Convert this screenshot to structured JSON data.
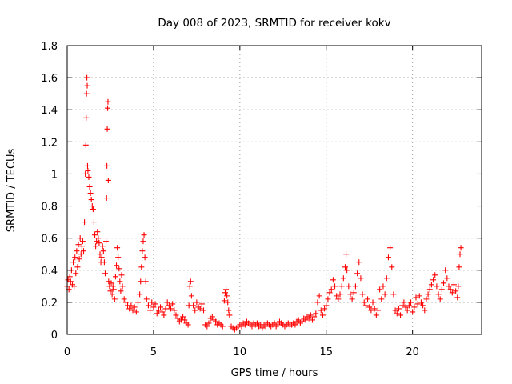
{
  "chart_data": {
    "type": "scatter",
    "title": "Day 008 of 2023, SRMTID for receiver kokv",
    "xlabel": "GPS time / hours",
    "ylabel": "SRMTID / TECUs",
    "xlim": [
      0,
      24
    ],
    "ylim": [
      0,
      1.8
    ],
    "xticks": [
      0,
      5,
      10,
      15,
      20
    ],
    "xtick_labels": [
      "0",
      "5",
      "10",
      "15",
      "20"
    ],
    "yticks": [
      0,
      0.2,
      0.4,
      0.6,
      0.8,
      1.0,
      1.2,
      1.4,
      1.6,
      1.8
    ],
    "ytick_labels": [
      "0",
      "0.2",
      "0.4",
      "0.6",
      "0.8",
      "1",
      "1.2",
      "1.4",
      "1.6",
      "1.8"
    ],
    "grid": true,
    "marker": "plus",
    "series": [
      {
        "name": "SRMTID",
        "color": "#ff0000",
        "points": [
          [
            0.0,
            0.3
          ],
          [
            0.05,
            0.34
          ],
          [
            0.1,
            0.28
          ],
          [
            0.15,
            0.36
          ],
          [
            0.2,
            0.33
          ],
          [
            0.25,
            0.4
          ],
          [
            0.3,
            0.31
          ],
          [
            0.35,
            0.45
          ],
          [
            0.4,
            0.3
          ],
          [
            0.45,
            0.48
          ],
          [
            0.5,
            0.38
          ],
          [
            0.55,
            0.52
          ],
          [
            0.6,
            0.42
          ],
          [
            0.65,
            0.56
          ],
          [
            0.7,
            0.47
          ],
          [
            0.75,
            0.6
          ],
          [
            0.8,
            0.5
          ],
          [
            0.85,
            0.55
          ],
          [
            0.9,
            0.58
          ],
          [
            0.95,
            0.52
          ],
          [
            1.0,
            0.7
          ],
          [
            1.05,
            1.0
          ],
          [
            1.08,
            1.18
          ],
          [
            1.1,
            1.35
          ],
          [
            1.12,
            1.5
          ],
          [
            1.14,
            1.6
          ],
          [
            1.16,
            1.55
          ],
          [
            1.18,
            1.05
          ],
          [
            1.2,
            1.02
          ],
          [
            1.25,
            0.98
          ],
          [
            1.3,
            0.92
          ],
          [
            1.35,
            0.88
          ],
          [
            1.4,
            0.84
          ],
          [
            1.45,
            0.8
          ],
          [
            1.5,
            0.78
          ],
          [
            1.55,
            0.7
          ],
          [
            1.6,
            0.62
          ],
          [
            1.65,
            0.55
          ],
          [
            1.7,
            0.58
          ],
          [
            1.75,
            0.64
          ],
          [
            1.8,
            0.6
          ],
          [
            1.85,
            0.57
          ],
          [
            1.9,
            0.5
          ],
          [
            1.95,
            0.45
          ],
          [
            2.0,
            0.48
          ],
          [
            2.05,
            0.55
          ],
          [
            2.1,
            0.52
          ],
          [
            2.15,
            0.45
          ],
          [
            2.2,
            0.38
          ],
          [
            2.25,
            0.58
          ],
          [
            2.28,
            0.85
          ],
          [
            2.3,
            1.05
          ],
          [
            2.32,
            1.28
          ],
          [
            2.34,
            1.41
          ],
          [
            2.36,
            1.45
          ],
          [
            2.38,
            0.96
          ],
          [
            2.4,
            0.33
          ],
          [
            2.45,
            0.3
          ],
          [
            2.5,
            0.27
          ],
          [
            2.55,
            0.32
          ],
          [
            2.6,
            0.25
          ],
          [
            2.65,
            0.3
          ],
          [
            2.7,
            0.28
          ],
          [
            2.75,
            0.22
          ],
          [
            2.8,
            0.36
          ],
          [
            2.85,
            0.43
          ],
          [
            2.9,
            0.54
          ],
          [
            2.95,
            0.48
          ],
          [
            3.0,
            0.41
          ],
          [
            3.05,
            0.33
          ],
          [
            3.1,
            0.27
          ],
          [
            3.15,
            0.37
          ],
          [
            3.2,
            0.3
          ],
          [
            3.3,
            0.22
          ],
          [
            3.4,
            0.2
          ],
          [
            3.5,
            0.18
          ],
          [
            3.6,
            0.16
          ],
          [
            3.7,
            0.18
          ],
          [
            3.8,
            0.15
          ],
          [
            3.9,
            0.17
          ],
          [
            4.0,
            0.14
          ],
          [
            4.1,
            0.2
          ],
          [
            4.2,
            0.25
          ],
          [
            4.25,
            0.33
          ],
          [
            4.3,
            0.42
          ],
          [
            4.35,
            0.52
          ],
          [
            4.4,
            0.58
          ],
          [
            4.45,
            0.62
          ],
          [
            4.5,
            0.48
          ],
          [
            4.55,
            0.33
          ],
          [
            4.6,
            0.22
          ],
          [
            4.7,
            0.18
          ],
          [
            4.8,
            0.15
          ],
          [
            4.9,
            0.2
          ],
          [
            5.0,
            0.17
          ],
          [
            5.1,
            0.19
          ],
          [
            5.2,
            0.13
          ],
          [
            5.3,
            0.15
          ],
          [
            5.4,
            0.17
          ],
          [
            5.5,
            0.14
          ],
          [
            5.6,
            0.12
          ],
          [
            5.7,
            0.16
          ],
          [
            5.8,
            0.2
          ],
          [
            5.9,
            0.18
          ],
          [
            6.0,
            0.16
          ],
          [
            6.1,
            0.19
          ],
          [
            6.2,
            0.15
          ],
          [
            6.3,
            0.12
          ],
          [
            6.4,
            0.1
          ],
          [
            6.5,
            0.08
          ],
          [
            6.6,
            0.09
          ],
          [
            6.7,
            0.11
          ],
          [
            6.8,
            0.09
          ],
          [
            6.9,
            0.07
          ],
          [
            7.0,
            0.06
          ],
          [
            7.05,
            0.18
          ],
          [
            7.1,
            0.3
          ],
          [
            7.15,
            0.33
          ],
          [
            7.2,
            0.24
          ],
          [
            7.3,
            0.18
          ],
          [
            7.4,
            0.15
          ],
          [
            7.5,
            0.2
          ],
          [
            7.6,
            0.17
          ],
          [
            7.7,
            0.16
          ],
          [
            7.8,
            0.19
          ],
          [
            7.9,
            0.15
          ],
          [
            8.0,
            0.06
          ],
          [
            8.1,
            0.05
          ],
          [
            8.2,
            0.07
          ],
          [
            8.3,
            0.1
          ],
          [
            8.4,
            0.11
          ],
          [
            8.5,
            0.09
          ],
          [
            8.6,
            0.08
          ],
          [
            8.7,
            0.06
          ],
          [
            8.8,
            0.07
          ],
          [
            8.9,
            0.06
          ],
          [
            9.0,
            0.05
          ],
          [
            9.1,
            0.21
          ],
          [
            9.15,
            0.26
          ],
          [
            9.2,
            0.28
          ],
          [
            9.25,
            0.24
          ],
          [
            9.3,
            0.2
          ],
          [
            9.35,
            0.15
          ],
          [
            9.4,
            0.12
          ],
          [
            9.5,
            0.05
          ],
          [
            9.6,
            0.04
          ],
          [
            9.7,
            0.03
          ],
          [
            9.8,
            0.04
          ],
          [
            9.9,
            0.05
          ],
          [
            10.0,
            0.06
          ],
          [
            10.1,
            0.05
          ],
          [
            10.2,
            0.07
          ],
          [
            10.3,
            0.06
          ],
          [
            10.4,
            0.08
          ],
          [
            10.5,
            0.07
          ],
          [
            10.6,
            0.06
          ],
          [
            10.7,
            0.05
          ],
          [
            10.8,
            0.07
          ],
          [
            10.9,
            0.06
          ],
          [
            11.0,
            0.07
          ],
          [
            11.1,
            0.05
          ],
          [
            11.2,
            0.06
          ],
          [
            11.3,
            0.04
          ],
          [
            11.4,
            0.06
          ],
          [
            11.5,
            0.05
          ],
          [
            11.6,
            0.07
          ],
          [
            11.7,
            0.06
          ],
          [
            11.8,
            0.05
          ],
          [
            11.9,
            0.06
          ],
          [
            12.0,
            0.07
          ],
          [
            12.1,
            0.05
          ],
          [
            12.2,
            0.06
          ],
          [
            12.3,
            0.08
          ],
          [
            12.4,
            0.07
          ],
          [
            12.5,
            0.06
          ],
          [
            12.6,
            0.05
          ],
          [
            12.7,
            0.06
          ],
          [
            12.8,
            0.07
          ],
          [
            12.9,
            0.05
          ],
          [
            13.0,
            0.06
          ],
          [
            13.1,
            0.07
          ],
          [
            13.2,
            0.06
          ],
          [
            13.3,
            0.08
          ],
          [
            13.4,
            0.09
          ],
          [
            13.5,
            0.07
          ],
          [
            13.6,
            0.08
          ],
          [
            13.7,
            0.1
          ],
          [
            13.8,
            0.09
          ],
          [
            13.9,
            0.11
          ],
          [
            14.0,
            0.1
          ],
          [
            14.1,
            0.12
          ],
          [
            14.2,
            0.09
          ],
          [
            14.3,
            0.11
          ],
          [
            14.4,
            0.13
          ],
          [
            14.5,
            0.2
          ],
          [
            14.6,
            0.24
          ],
          [
            14.7,
            0.15
          ],
          [
            14.8,
            0.12
          ],
          [
            14.9,
            0.16
          ],
          [
            15.0,
            0.18
          ],
          [
            15.1,
            0.22
          ],
          [
            15.2,
            0.26
          ],
          [
            15.3,
            0.28
          ],
          [
            15.4,
            0.34
          ],
          [
            15.5,
            0.3
          ],
          [
            15.6,
            0.24
          ],
          [
            15.7,
            0.22
          ],
          [
            15.8,
            0.25
          ],
          [
            15.9,
            0.3
          ],
          [
            16.0,
            0.35
          ],
          [
            16.1,
            0.42
          ],
          [
            16.15,
            0.5
          ],
          [
            16.2,
            0.4
          ],
          [
            16.3,
            0.3
          ],
          [
            16.4,
            0.25
          ],
          [
            16.5,
            0.22
          ],
          [
            16.6,
            0.26
          ],
          [
            16.7,
            0.3
          ],
          [
            16.8,
            0.38
          ],
          [
            16.9,
            0.45
          ],
          [
            17.0,
            0.35
          ],
          [
            17.1,
            0.25
          ],
          [
            17.2,
            0.2
          ],
          [
            17.3,
            0.18
          ],
          [
            17.4,
            0.22
          ],
          [
            17.5,
            0.17
          ],
          [
            17.6,
            0.15
          ],
          [
            17.7,
            0.2
          ],
          [
            17.8,
            0.16
          ],
          [
            17.9,
            0.12
          ],
          [
            18.0,
            0.15
          ],
          [
            18.1,
            0.28
          ],
          [
            18.2,
            0.22
          ],
          [
            18.3,
            0.3
          ],
          [
            18.4,
            0.25
          ],
          [
            18.5,
            0.35
          ],
          [
            18.6,
            0.48
          ],
          [
            18.7,
            0.54
          ],
          [
            18.8,
            0.42
          ],
          [
            18.9,
            0.25
          ],
          [
            19.0,
            0.15
          ],
          [
            19.1,
            0.13
          ],
          [
            19.2,
            0.16
          ],
          [
            19.3,
            0.12
          ],
          [
            19.4,
            0.18
          ],
          [
            19.5,
            0.2
          ],
          [
            19.6,
            0.17
          ],
          [
            19.7,
            0.15
          ],
          [
            19.8,
            0.18
          ],
          [
            19.9,
            0.2
          ],
          [
            20.0,
            0.14
          ],
          [
            20.1,
            0.17
          ],
          [
            20.2,
            0.23
          ],
          [
            20.3,
            0.19
          ],
          [
            20.4,
            0.24
          ],
          [
            20.5,
            0.2
          ],
          [
            20.6,
            0.18
          ],
          [
            20.7,
            0.15
          ],
          [
            20.8,
            0.22
          ],
          [
            20.9,
            0.25
          ],
          [
            21.0,
            0.28
          ],
          [
            21.1,
            0.31
          ],
          [
            21.2,
            0.34
          ],
          [
            21.3,
            0.37
          ],
          [
            21.4,
            0.3
          ],
          [
            21.5,
            0.25
          ],
          [
            21.6,
            0.22
          ],
          [
            21.7,
            0.28
          ],
          [
            21.8,
            0.32
          ],
          [
            21.9,
            0.4
          ],
          [
            22.0,
            0.35
          ],
          [
            22.1,
            0.3
          ],
          [
            22.2,
            0.28
          ],
          [
            22.3,
            0.26
          ],
          [
            22.4,
            0.31
          ],
          [
            22.5,
            0.27
          ],
          [
            22.6,
            0.23
          ],
          [
            22.65,
            0.3
          ],
          [
            22.7,
            0.42
          ],
          [
            22.75,
            0.5
          ],
          [
            22.8,
            0.54
          ]
        ]
      }
    ]
  }
}
